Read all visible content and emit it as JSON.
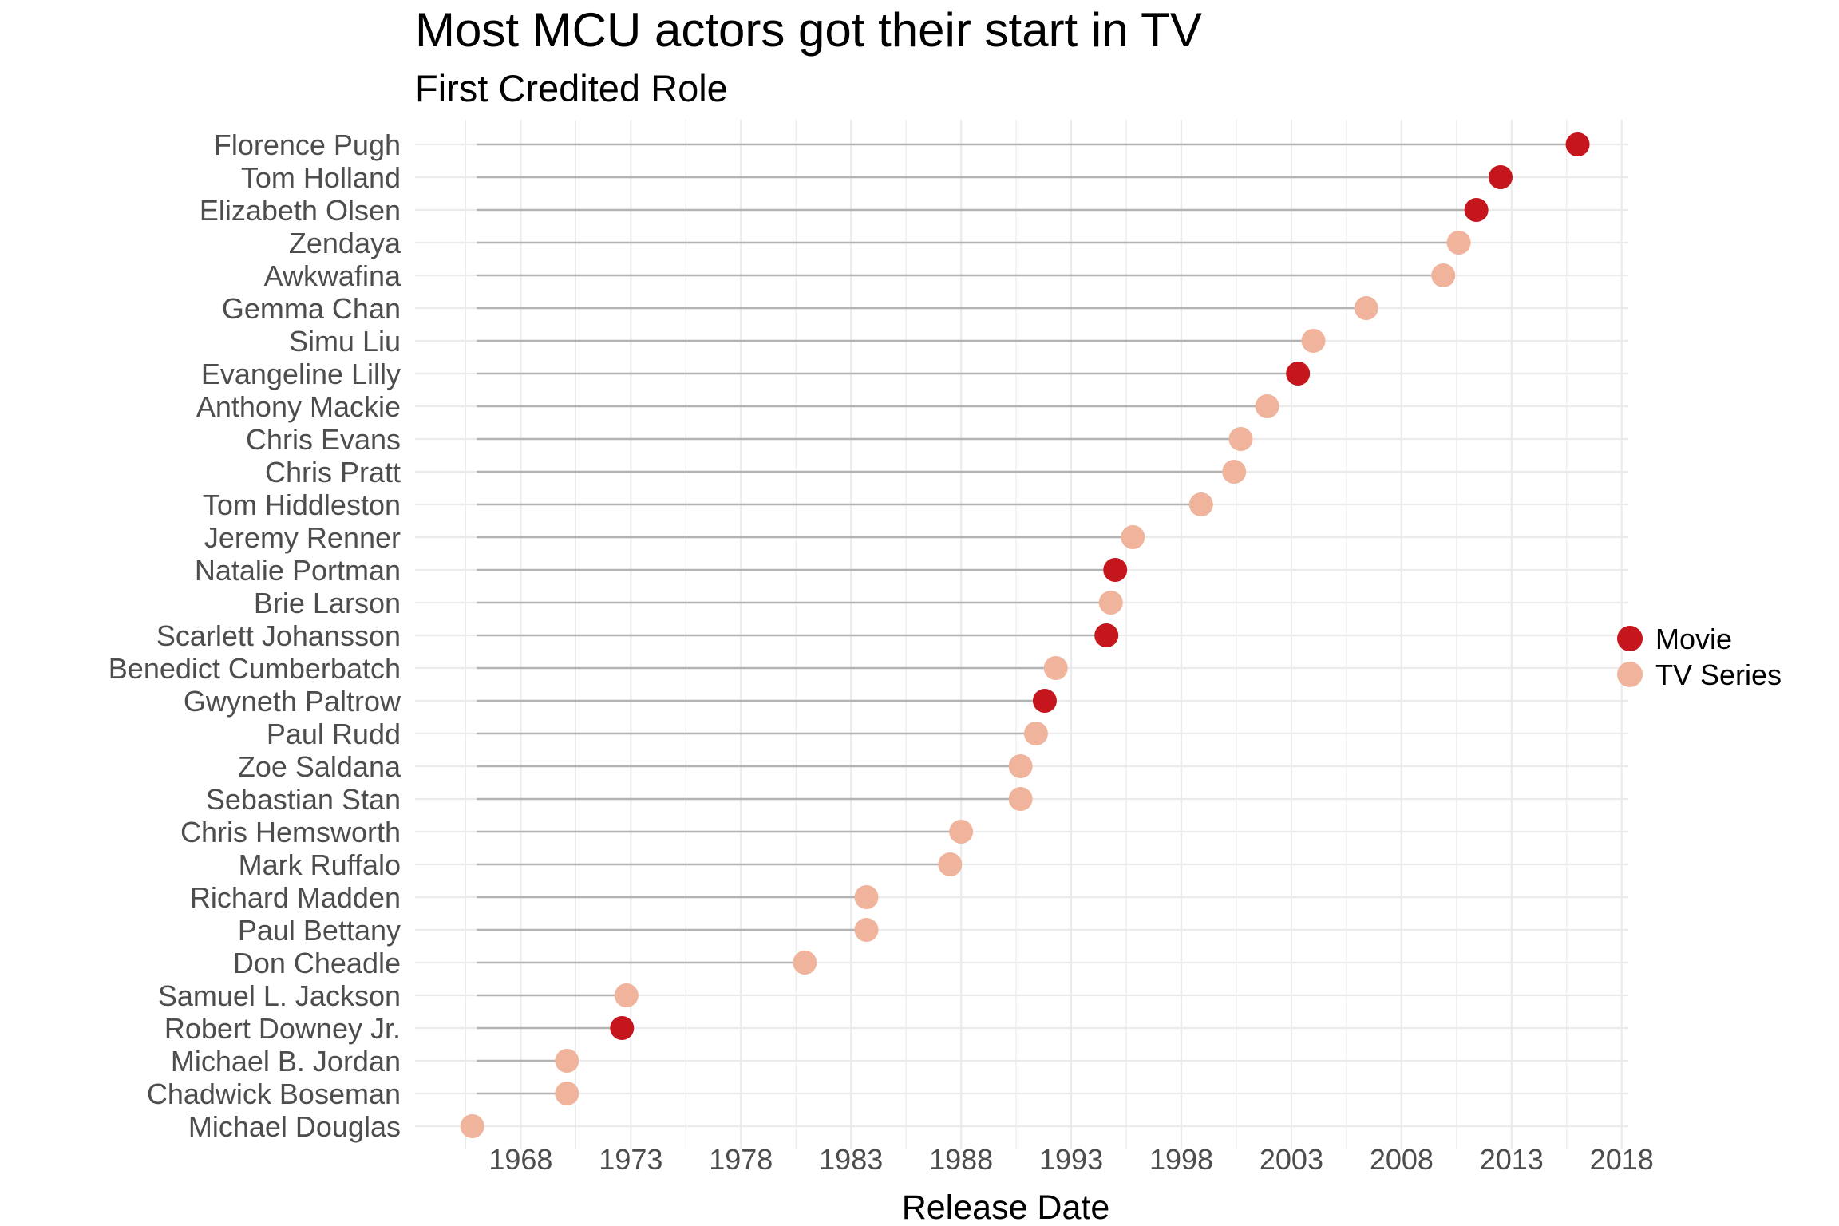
{
  "chart_data": {
    "type": "scatter",
    "subtype": "lollipop",
    "title": "Most MCU actors got their start in TV",
    "subtitle": "First Credited Role",
    "xlabel": "Release Date",
    "ylabel": "",
    "xlim": [
      1963.2,
      2018.3
    ],
    "x_ticks": [
      "1968",
      "1973",
      "1978",
      "1983",
      "1988",
      "1993",
      "1998",
      "2003",
      "2008",
      "2013",
      "2018"
    ],
    "x_tick_values": [
      1968,
      1973,
      1978,
      1983,
      1988,
      1993,
      1998,
      2003,
      2008,
      2013,
      2018
    ],
    "lollipop_start": 1966,
    "grid": true,
    "legend_position": "right",
    "colors": {
      "Movie": "#c4161c",
      "TV Series": "#f0b39c",
      "stem": "#b3b3b3",
      "grid": "#ebebeb"
    },
    "legend": [
      {
        "name": "Movie",
        "color": "#c4161c"
      },
      {
        "name": "TV Series",
        "color": "#f0b39c"
      }
    ],
    "points": [
      {
        "name": "Florence Pugh",
        "date": 2016.0,
        "type": "Movie"
      },
      {
        "name": "Tom Holland",
        "date": 2012.5,
        "type": "Movie"
      },
      {
        "name": "Elizabeth Olsen",
        "date": 2011.4,
        "type": "Movie"
      },
      {
        "name": "Zendaya",
        "date": 2010.6,
        "type": "TV Series"
      },
      {
        "name": "Awkwafina",
        "date": 2009.9,
        "type": "TV Series"
      },
      {
        "name": "Gemma Chan",
        "date": 2006.4,
        "type": "TV Series"
      },
      {
        "name": "Simu Liu",
        "date": 2004.0,
        "type": "TV Series"
      },
      {
        "name": "Evangeline Lilly",
        "date": 2003.3,
        "type": "Movie"
      },
      {
        "name": "Anthony Mackie",
        "date": 2001.9,
        "type": "TV Series"
      },
      {
        "name": "Chris Evans",
        "date": 2000.7,
        "type": "TV Series"
      },
      {
        "name": "Chris Pratt",
        "date": 2000.4,
        "type": "TV Series"
      },
      {
        "name": "Tom Hiddleston",
        "date": 1998.9,
        "type": "TV Series"
      },
      {
        "name": "Jeremy Renner",
        "date": 1995.8,
        "type": "TV Series"
      },
      {
        "name": "Natalie Portman",
        "date": 1995.0,
        "type": "Movie"
      },
      {
        "name": "Brie Larson",
        "date": 1994.8,
        "type": "TV Series"
      },
      {
        "name": "Scarlett Johansson",
        "date": 1994.6,
        "type": "Movie"
      },
      {
        "name": "Benedict Cumberbatch",
        "date": 1992.3,
        "type": "TV Series"
      },
      {
        "name": "Gwyneth Paltrow",
        "date": 1991.8,
        "type": "Movie"
      },
      {
        "name": "Paul Rudd",
        "date": 1991.4,
        "type": "TV Series"
      },
      {
        "name": "Zoe Saldana",
        "date": 1990.7,
        "type": "TV Series"
      },
      {
        "name": "Sebastian Stan",
        "date": 1990.7,
        "type": "TV Series"
      },
      {
        "name": "Chris Hemsworth",
        "date": 1988.0,
        "type": "TV Series"
      },
      {
        "name": "Mark Ruffalo",
        "date": 1987.5,
        "type": "TV Series"
      },
      {
        "name": "Richard Madden",
        "date": 1983.7,
        "type": "TV Series"
      },
      {
        "name": "Paul Bettany",
        "date": 1983.7,
        "type": "TV Series"
      },
      {
        "name": "Don Cheadle",
        "date": 1980.9,
        "type": "TV Series"
      },
      {
        "name": "Samuel L. Jackson",
        "date": 1972.8,
        "type": "TV Series"
      },
      {
        "name": "Robert Downey Jr.",
        "date": 1972.6,
        "type": "Movie"
      },
      {
        "name": "Michael B. Jordan",
        "date": 1970.1,
        "type": "TV Series"
      },
      {
        "name": "Chadwick Boseman",
        "date": 1970.1,
        "type": "TV Series"
      },
      {
        "name": "Michael Douglas",
        "date": 1965.8,
        "type": "TV Series"
      }
    ]
  }
}
